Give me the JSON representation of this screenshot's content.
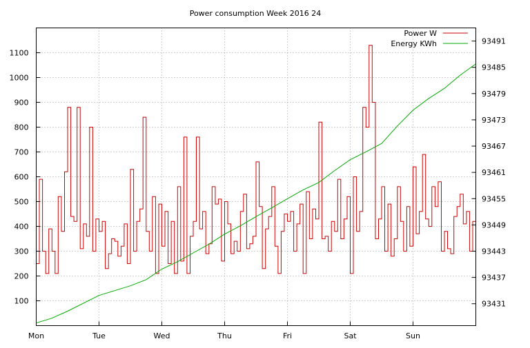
{
  "chart_data": {
    "type": "line",
    "title": "Power consumption Week 2016 24",
    "xlabel": "",
    "ylabel": "",
    "y2label": "",
    "x_tick_labels": [
      "Mon",
      "Tue",
      "Wed",
      "Thu",
      "Fri",
      "Sat",
      "Sun"
    ],
    "x_range_days": [
      0,
      7
    ],
    "ylim": [
      0,
      1200
    ],
    "y_ticks": [
      100,
      200,
      300,
      400,
      500,
      600,
      700,
      800,
      900,
      1000,
      1100
    ],
    "y2lim": [
      93426,
      93494
    ],
    "y2_ticks": [
      93431,
      93437,
      93443,
      93449,
      93455,
      93461,
      93467,
      93473,
      93479,
      93485,
      93491
    ],
    "grid": true,
    "legend_position": "top-right",
    "series": [
      {
        "name": "Power W",
        "color": "#cc0000",
        "axis": "y",
        "x": [
          0,
          0.05,
          0.1,
          0.15,
          0.2,
          0.25,
          0.3,
          0.35,
          0.4,
          0.45,
          0.5,
          0.55,
          0.6,
          0.65,
          0.7,
          0.75,
          0.8,
          0.85,
          0.9,
          0.95,
          1.0,
          1.05,
          1.1,
          1.15,
          1.2,
          1.25,
          1.3,
          1.35,
          1.4,
          1.45,
          1.5,
          1.55,
          1.6,
          1.65,
          1.7,
          1.75,
          1.8,
          1.85,
          1.9,
          1.95,
          2.0,
          2.05,
          2.1,
          2.15,
          2.2,
          2.25,
          2.3,
          2.35,
          2.4,
          2.45,
          2.5,
          2.55,
          2.6,
          2.65,
          2.7,
          2.75,
          2.8,
          2.85,
          2.9,
          2.95,
          3.0,
          3.05,
          3.1,
          3.15,
          3.2,
          3.25,
          3.3,
          3.35,
          3.4,
          3.45,
          3.5,
          3.55,
          3.6,
          3.65,
          3.7,
          3.75,
          3.8,
          3.85,
          3.9,
          3.95,
          4.0,
          4.05,
          4.1,
          4.15,
          4.2,
          4.25,
          4.3,
          4.35,
          4.4,
          4.45,
          4.5,
          4.55,
          4.6,
          4.65,
          4.7,
          4.75,
          4.8,
          4.85,
          4.9,
          4.95,
          5.0,
          5.05,
          5.1,
          5.15,
          5.2,
          5.25,
          5.3,
          5.35,
          5.4,
          5.45,
          5.5,
          5.55,
          5.6,
          5.65,
          5.7,
          5.75,
          5.8,
          5.85,
          5.9,
          5.95,
          6.0,
          6.05,
          6.1,
          6.15,
          6.2,
          6.25,
          6.3,
          6.35,
          6.4,
          6.45,
          6.5,
          6.55,
          6.6,
          6.65,
          6.7,
          6.75,
          6.8,
          6.85,
          6.9,
          6.95,
          7.0
        ],
        "values": [
          250,
          590,
          300,
          210,
          390,
          300,
          210,
          520,
          380,
          620,
          880,
          440,
          420,
          880,
          310,
          410,
          360,
          800,
          300,
          430,
          380,
          420,
          230,
          290,
          350,
          340,
          280,
          320,
          410,
          250,
          630,
          300,
          420,
          470,
          840,
          380,
          300,
          520,
          210,
          490,
          320,
          460,
          250,
          420,
          210,
          560,
          260,
          760,
          210,
          360,
          420,
          760,
          390,
          460,
          290,
          330,
          560,
          490,
          510,
          260,
          500,
          410,
          290,
          340,
          300,
          460,
          530,
          310,
          330,
          360,
          660,
          480,
          230,
          390,
          440,
          560,
          320,
          210,
          380,
          450,
          420,
          460,
          300,
          410,
          490,
          210,
          540,
          350,
          470,
          430,
          820,
          350,
          360,
          300,
          420,
          380,
          590,
          350,
          430,
          520,
          210,
          600,
          380,
          460,
          880,
          800,
          1130,
          900,
          350,
          430,
          560,
          300,
          490,
          280,
          350,
          560,
          420,
          300,
          480,
          320,
          640,
          370,
          460,
          690,
          430,
          400,
          560,
          480,
          580,
          300,
          380,
          310,
          290,
          440,
          480,
          530,
          410,
          460,
          300,
          420,
          480
        ]
      },
      {
        "name": "Energy KWh",
        "color": "#00aa00",
        "axis": "y2",
        "x": [
          0,
          0.25,
          0.5,
          0.75,
          1.0,
          1.25,
          1.5,
          1.75,
          2.0,
          2.25,
          2.5,
          2.75,
          3.0,
          3.25,
          3.5,
          3.75,
          4.0,
          4.25,
          4.5,
          4.75,
          5.0,
          5.25,
          5.5,
          5.75,
          6.0,
          6.25,
          6.5,
          6.75,
          7.0
        ],
        "values": [
          93426.6,
          93427.7,
          93429.3,
          93431.1,
          93432.9,
          93434.0,
          93435.1,
          93436.5,
          93438.9,
          93440.6,
          93442.6,
          93444.6,
          93446.9,
          93448.8,
          93450.9,
          93452.9,
          93455.0,
          93457.0,
          93458.7,
          93461.4,
          93463.9,
          93465.7,
          93467.6,
          93471.6,
          93475.2,
          93477.9,
          93480.2,
          93483.2,
          93485.8
        ]
      }
    ]
  }
}
